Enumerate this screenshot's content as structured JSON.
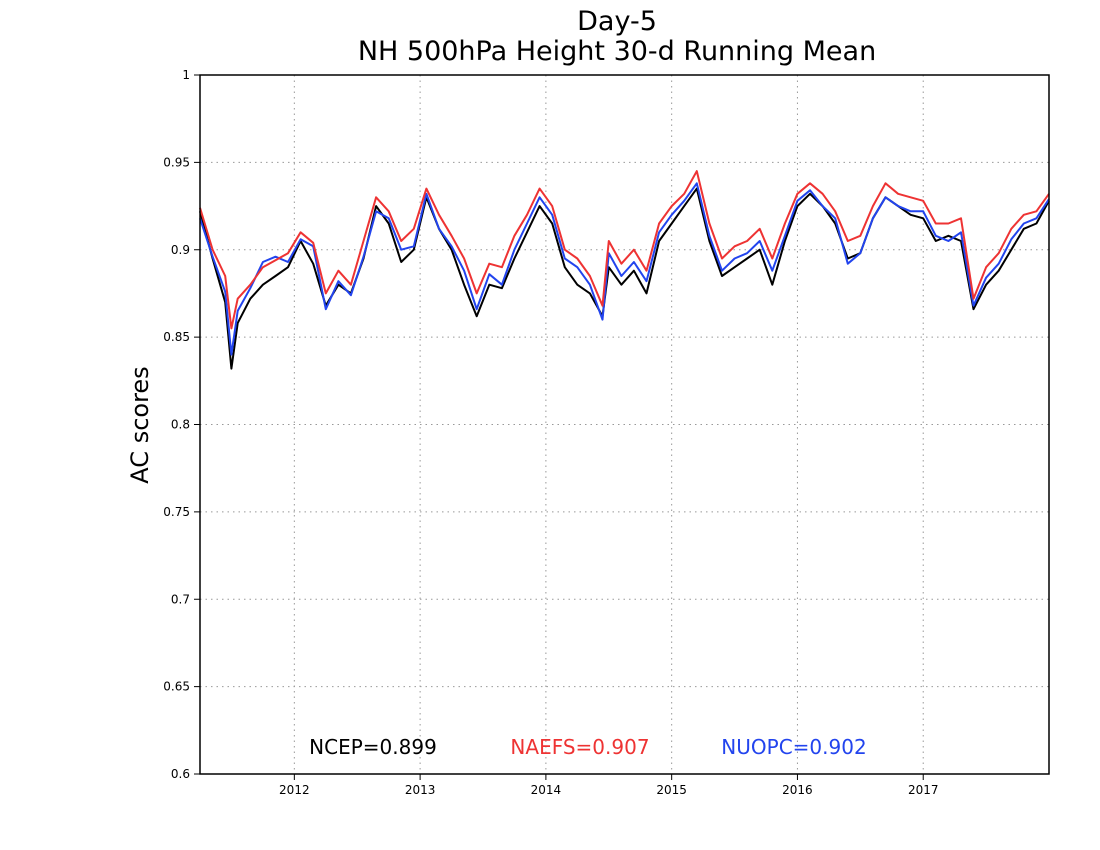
{
  "chart_data": {
    "type": "line",
    "title": "Day-5",
    "subtitle": "NH 500hPa Height 30-d Running Mean",
    "xlabel": "",
    "ylabel": "AC scores",
    "xlim": [
      2011.25,
      2018.0
    ],
    "ylim": [
      0.6,
      1.0
    ],
    "grid": true,
    "x_tick_labels": [
      "2012",
      "2013",
      "2014",
      "2015",
      "2016",
      "2017"
    ],
    "y_tick_labels": [
      "0.6",
      "0.65",
      "0.7",
      "0.75",
      "0.8",
      "0.85",
      "0.9",
      "0.95",
      "1"
    ],
    "x": [
      2011.25,
      2011.35,
      2011.45,
      2011.5,
      2011.55,
      2011.65,
      2011.75,
      2011.85,
      2011.95,
      2012.05,
      2012.15,
      2012.25,
      2012.35,
      2012.45,
      2012.55,
      2012.65,
      2012.75,
      2012.85,
      2012.95,
      2013.05,
      2013.15,
      2013.25,
      2013.35,
      2013.45,
      2013.55,
      2013.65,
      2013.75,
      2013.85,
      2013.95,
      2014.05,
      2014.15,
      2014.25,
      2014.35,
      2014.45,
      2014.5,
      2014.6,
      2014.7,
      2014.8,
      2014.9,
      2015.0,
      2015.1,
      2015.2,
      2015.3,
      2015.4,
      2015.5,
      2015.6,
      2015.7,
      2015.8,
      2015.9,
      2016.0,
      2016.1,
      2016.2,
      2016.3,
      2016.4,
      2016.5,
      2016.6,
      2016.7,
      2016.8,
      2016.9,
      2017.0,
      2017.1,
      2017.2,
      2017.3,
      2017.4,
      2017.5,
      2017.6,
      2017.7,
      2017.8,
      2017.9,
      2018.0
    ],
    "series": [
      {
        "name": "NCEP",
        "color": "#000000",
        "values": [
          0.922,
          0.895,
          0.87,
          0.832,
          0.858,
          0.872,
          0.88,
          0.885,
          0.89,
          0.905,
          0.892,
          0.868,
          0.88,
          0.875,
          0.895,
          0.925,
          0.915,
          0.893,
          0.9,
          0.93,
          0.912,
          0.9,
          0.88,
          0.862,
          0.88,
          0.878,
          0.895,
          0.91,
          0.925,
          0.915,
          0.89,
          0.88,
          0.875,
          0.862,
          0.89,
          0.88,
          0.888,
          0.875,
          0.905,
          0.915,
          0.925,
          0.935,
          0.905,
          0.885,
          0.89,
          0.895,
          0.9,
          0.88,
          0.905,
          0.925,
          0.932,
          0.925,
          0.915,
          0.895,
          0.898,
          0.918,
          0.93,
          0.925,
          0.92,
          0.918,
          0.905,
          0.908,
          0.905,
          0.866,
          0.88,
          0.888,
          0.9,
          0.912,
          0.915,
          0.928
        ]
      },
      {
        "name": "NAEFS",
        "color": "#ee3333",
        "values": [
          0.924,
          0.9,
          0.885,
          0.855,
          0.872,
          0.88,
          0.89,
          0.894,
          0.898,
          0.91,
          0.904,
          0.875,
          0.888,
          0.88,
          0.905,
          0.93,
          0.922,
          0.905,
          0.912,
          0.935,
          0.92,
          0.908,
          0.895,
          0.875,
          0.892,
          0.89,
          0.908,
          0.92,
          0.935,
          0.925,
          0.9,
          0.895,
          0.885,
          0.868,
          0.905,
          0.892,
          0.9,
          0.888,
          0.915,
          0.925,
          0.932,
          0.945,
          0.915,
          0.895,
          0.902,
          0.905,
          0.912,
          0.895,
          0.915,
          0.932,
          0.938,
          0.932,
          0.922,
          0.905,
          0.908,
          0.925,
          0.938,
          0.932,
          0.93,
          0.928,
          0.915,
          0.915,
          0.918,
          0.872,
          0.89,
          0.898,
          0.912,
          0.92,
          0.922,
          0.932
        ]
      },
      {
        "name": "NUOPC",
        "color": "#2244ee",
        "values": [
          0.918,
          0.896,
          0.876,
          0.84,
          0.865,
          0.878,
          0.893,
          0.896,
          0.893,
          0.906,
          0.902,
          0.866,
          0.882,
          0.874,
          0.896,
          0.922,
          0.918,
          0.9,
          0.902,
          0.932,
          0.912,
          0.902,
          0.888,
          0.866,
          0.886,
          0.88,
          0.9,
          0.915,
          0.93,
          0.92,
          0.895,
          0.89,
          0.88,
          0.86,
          0.898,
          0.885,
          0.893,
          0.882,
          0.91,
          0.92,
          0.928,
          0.938,
          0.908,
          0.888,
          0.895,
          0.898,
          0.905,
          0.888,
          0.908,
          0.928,
          0.934,
          0.925,
          0.918,
          0.892,
          0.898,
          0.918,
          0.93,
          0.925,
          0.922,
          0.922,
          0.908,
          0.905,
          0.91,
          0.868,
          0.884,
          0.892,
          0.906,
          0.915,
          0.918,
          0.929
        ]
      }
    ],
    "annotations": [
      "NCEP=0.899",
      "NAEFS=0.907",
      "NUOPC=0.902"
    ]
  }
}
